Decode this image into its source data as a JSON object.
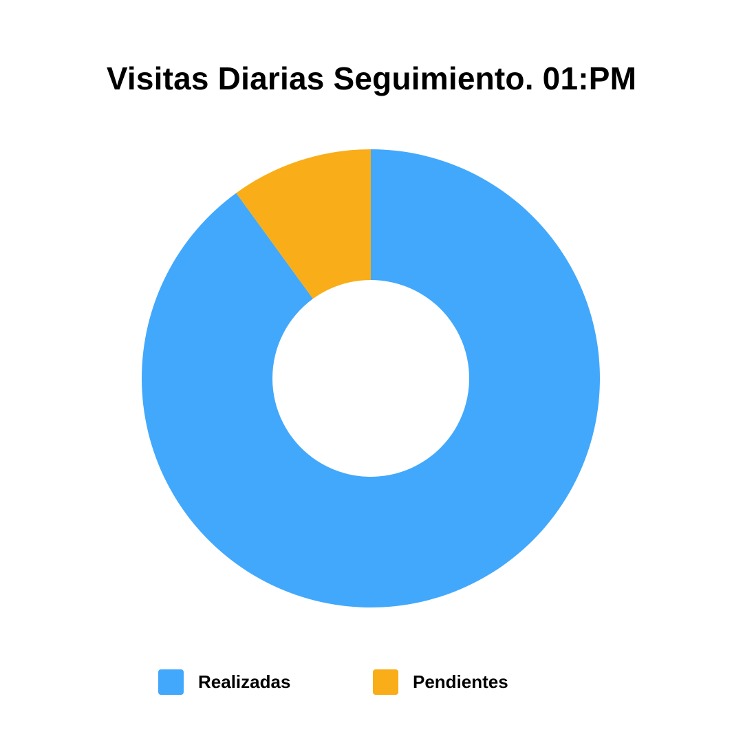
{
  "chart_data": {
    "type": "pie",
    "variant": "donut",
    "title": "Visitas Diarias Seguimiento. 01:PM",
    "categories": [
      "Realizadas",
      "Pendientes"
    ],
    "values": [
      90,
      10
    ],
    "colors": [
      "#42a8fc",
      "#f9ad18"
    ],
    "legend_position": "bottom"
  }
}
